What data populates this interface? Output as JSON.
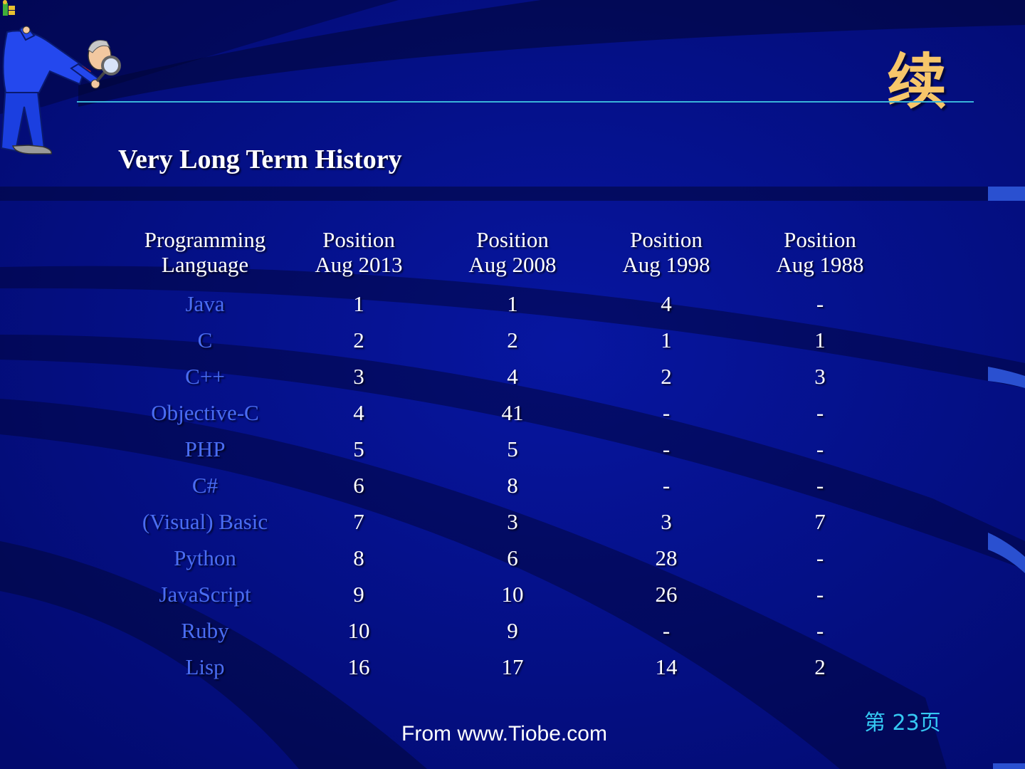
{
  "slide": {
    "title": "续",
    "heading": "Very Long Term History",
    "source": "From www.Tiobe.com",
    "page_number": "第 23页"
  },
  "table": {
    "headers": [
      [
        "Programming",
        "Language"
      ],
      [
        "Position",
        "Aug 2013"
      ],
      [
        "Position",
        "Aug 2008"
      ],
      [
        "Position",
        "Aug 1998"
      ],
      [
        "Position",
        "Aug 1988"
      ]
    ],
    "rows": [
      [
        "Java",
        "1",
        "1",
        "4",
        "-"
      ],
      [
        "C",
        "2",
        "2",
        "1",
        "1"
      ],
      [
        "C++",
        "3",
        "4",
        "2",
        "3"
      ],
      [
        "Objective-C",
        "4",
        "41",
        "-",
        "-"
      ],
      [
        "PHP",
        "5",
        "5",
        "-",
        "-"
      ],
      [
        "C#",
        "6",
        "8",
        "-",
        "-"
      ],
      [
        "(Visual) Basic",
        "7",
        "3",
        "3",
        "7"
      ],
      [
        "Python",
        "8",
        "6",
        "28",
        "-"
      ],
      [
        "JavaScript",
        "9",
        "10",
        "26",
        "-"
      ],
      [
        "Ruby",
        "10",
        "9",
        "-",
        "-"
      ],
      [
        "Lisp",
        "16",
        "17",
        "14",
        "2"
      ]
    ]
  },
  "colors": {
    "background": "#020a6e",
    "title": "#f7c66a",
    "rule": "#39b4d9",
    "language_text": "#4a6df2",
    "page_number": "#35c8f2",
    "body_text": "#ffffff"
  },
  "icons": {
    "figure": "man-with-magnifying-glass-icon",
    "corner": "small-figure-icon"
  }
}
